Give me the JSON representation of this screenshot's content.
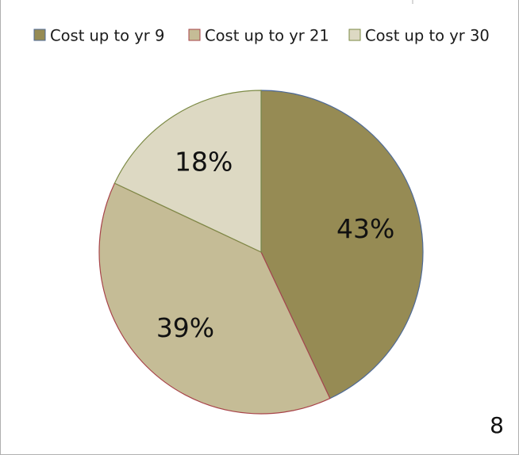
{
  "chart_data": {
    "type": "pie",
    "title": "",
    "legend_position": "top",
    "slices": [
      {
        "name": "Cost up to yr 9",
        "value": 43,
        "label": "43%",
        "color": "#968b54",
        "stroke": "#4f6a96"
      },
      {
        "name": "Cost up to yr 21",
        "value": 39,
        "label": "39%",
        "color": "#c5bc96",
        "stroke": "#a8444a"
      },
      {
        "name": "Cost up to yr 30",
        "value": 18,
        "label": "18%",
        "color": "#ddd9c3",
        "stroke": "#7c8a45"
      }
    ]
  },
  "page_number": "8"
}
